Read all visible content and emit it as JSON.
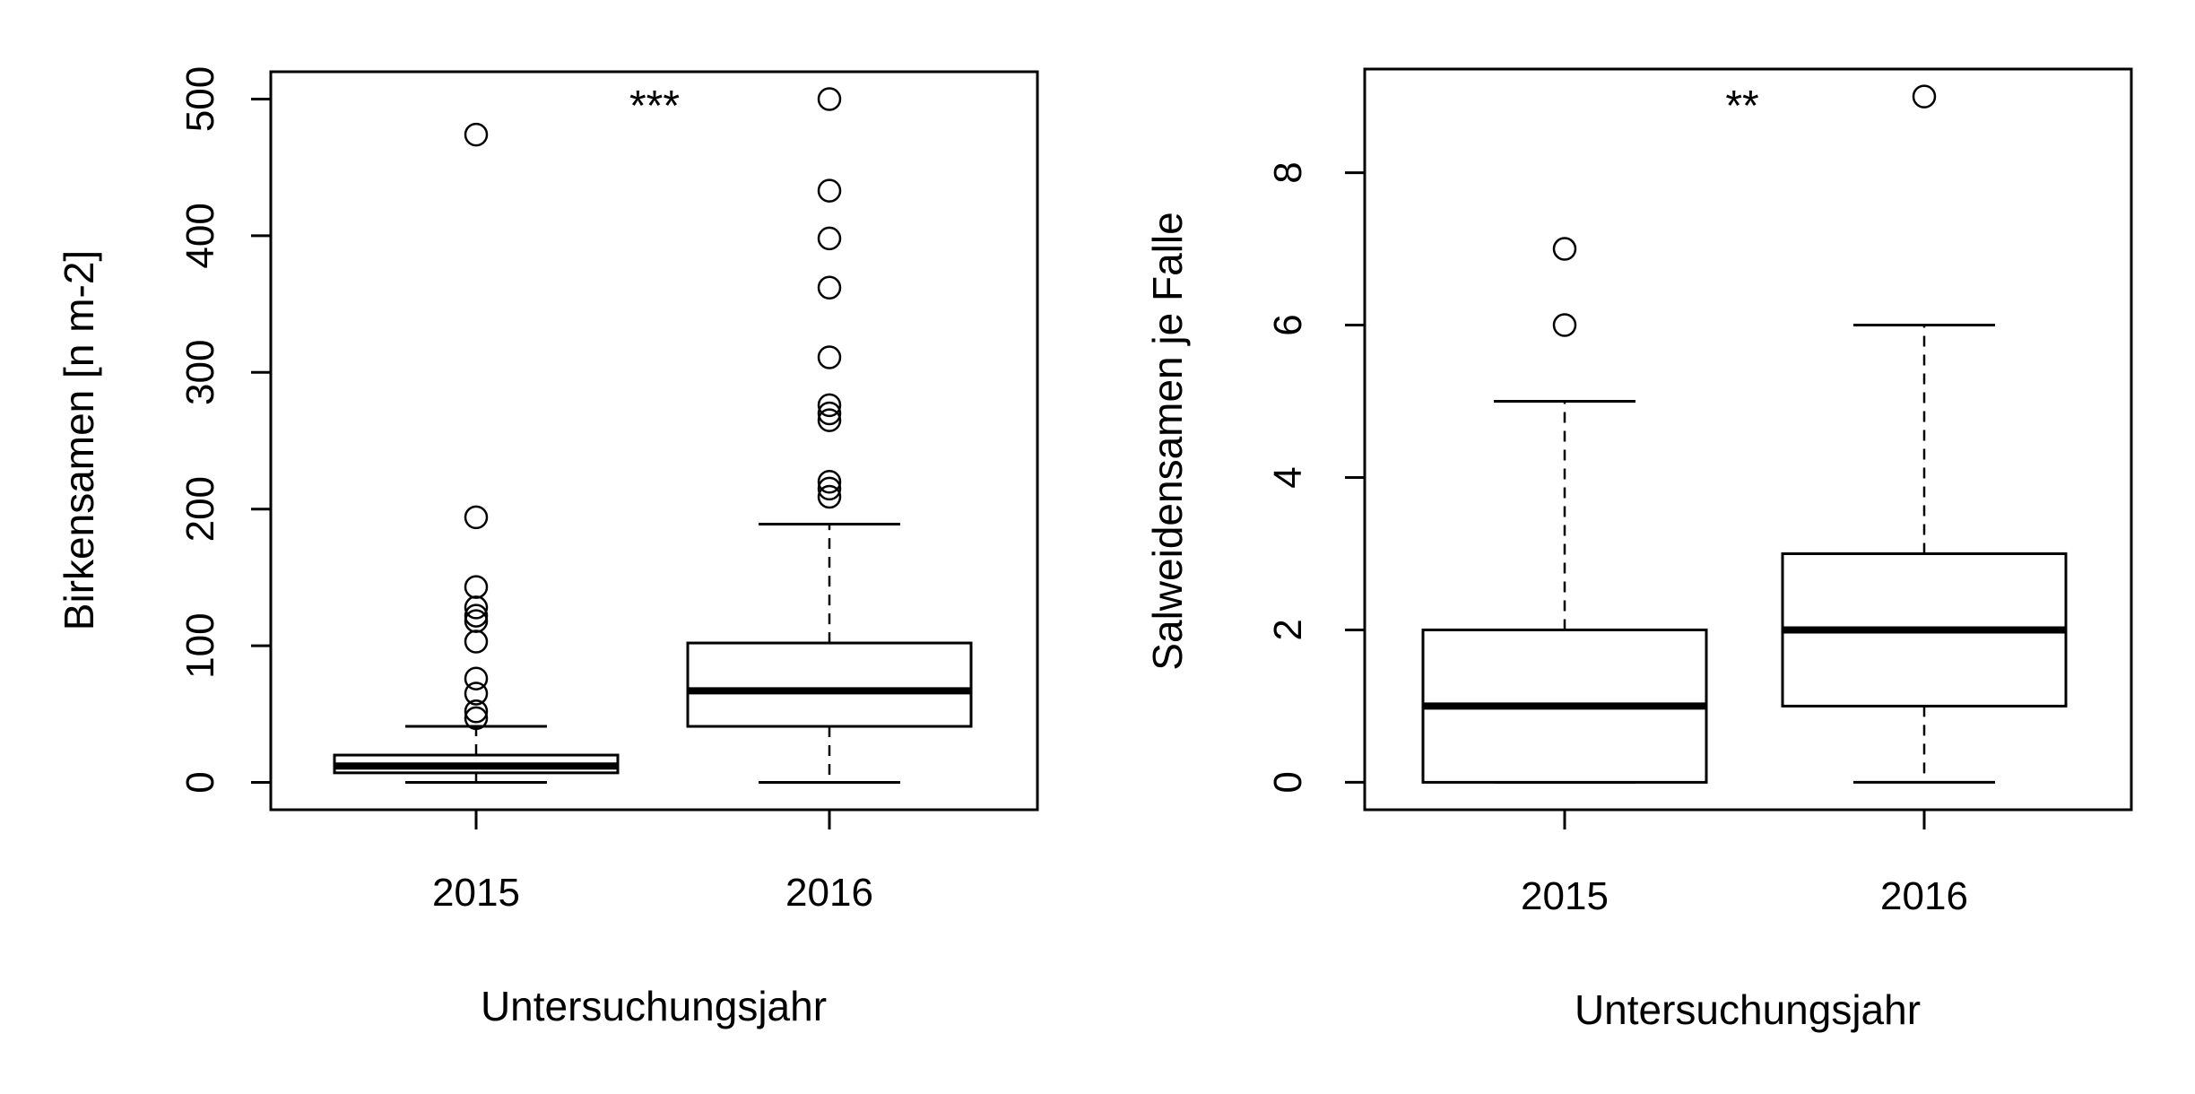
{
  "chart_data": [
    {
      "type": "box",
      "xlabel": "Untersuchungsjahr",
      "ylabel": "Birkensamen [n m-2]",
      "ylim": [
        -20,
        520
      ],
      "yticks": [
        0,
        100,
        200,
        300,
        400,
        500
      ],
      "categories": [
        "2015",
        "2016"
      ],
      "significance": "***",
      "grid": false,
      "boxes": [
        {
          "category": "2015",
          "whisker_low": 0,
          "q1": 7,
          "median": 12,
          "q3": 20,
          "whisker_high": 41,
          "outliers": [
            474,
            194,
            143,
            128,
            122,
            118,
            103,
            76,
            65,
            52,
            47
          ]
        },
        {
          "category": "2016",
          "whisker_low": 0,
          "q1": 41,
          "median": 67,
          "q3": 102,
          "whisker_high": 189,
          "outliers": [
            500,
            433,
            398,
            362,
            311,
            276,
            270,
            265,
            220,
            215,
            209
          ]
        }
      ]
    },
    {
      "type": "box",
      "xlabel": "Untersuchungsjahr",
      "ylabel": "Salweidensamen je Falle",
      "ylim": [
        -0.36,
        9.36
      ],
      "yticks": [
        0,
        2,
        4,
        6,
        8
      ],
      "categories": [
        "2015",
        "2016"
      ],
      "significance": "**",
      "grid": false,
      "boxes": [
        {
          "category": "2015",
          "whisker_low": 0,
          "q1": 0,
          "median": 1,
          "q3": 2,
          "whisker_high": 5,
          "outliers": [
            7,
            6
          ]
        },
        {
          "category": "2016",
          "whisker_low": 0,
          "q1": 1,
          "median": 2,
          "q3": 3,
          "whisker_high": 6,
          "outliers": [
            9
          ]
        }
      ]
    }
  ]
}
